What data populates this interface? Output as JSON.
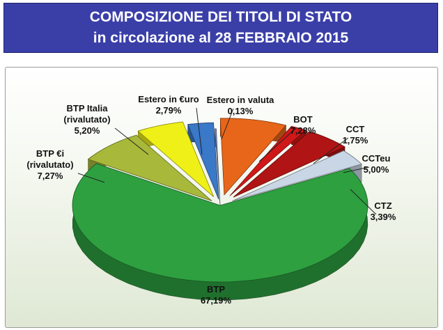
{
  "header": {
    "line1": "COMPOSIZIONE DEI TITOLI DI STATO",
    "line2": "in circolazione al  28 FEBBRAIO  2015"
  },
  "chart_data": {
    "type": "pie",
    "title": "COMPOSIZIONE DEI TITOLI DI STATO in circolazione al 28 FEBBRAIO 2015",
    "unit": "%",
    "slices": [
      {
        "name": "Estero in valuta",
        "label_lines": [
          "Estero in valuta"
        ],
        "value": 0.13,
        "value_text": "0,13%",
        "color": "#7a8fbf"
      },
      {
        "name": "BOT",
        "label_lines": [
          "BOT"
        ],
        "value": 7.28,
        "value_text": "7,28%",
        "color": "#e8661a"
      },
      {
        "name": "CCT",
        "label_lines": [
          "CCT"
        ],
        "value": 1.75,
        "value_text": "1,75%",
        "color": "#d01818"
      },
      {
        "name": "CCTeu",
        "label_lines": [
          "CCTeu"
        ],
        "value": 5.0,
        "value_text": "5,00%",
        "color": "#b01414"
      },
      {
        "name": "CTZ",
        "label_lines": [
          "CTZ"
        ],
        "value": 3.39,
        "value_text": "3,39%",
        "color": "#c9d6e6"
      },
      {
        "name": "BTP",
        "label_lines": [
          "BTP"
        ],
        "value": 67.19,
        "value_text": "67,19%",
        "color": "#2ea040"
      },
      {
        "name": "BTP €i (rivalutato)",
        "label_lines": [
          "BTP €i",
          "(rivalutato)"
        ],
        "value": 7.27,
        "value_text": "7,27%",
        "color": "#a8b83a"
      },
      {
        "name": "BTP Italia (rivalutato)",
        "label_lines": [
          "BTP Italia",
          "(rivalutato)"
        ],
        "value": 5.2,
        "value_text": "5,20%",
        "color": "#eef018"
      },
      {
        "name": "Estero in €uro",
        "label_lines": [
          "Estero in €uro"
        ],
        "value": 2.79,
        "value_text": "2,79%",
        "color": "#3a78c8"
      }
    ]
  }
}
